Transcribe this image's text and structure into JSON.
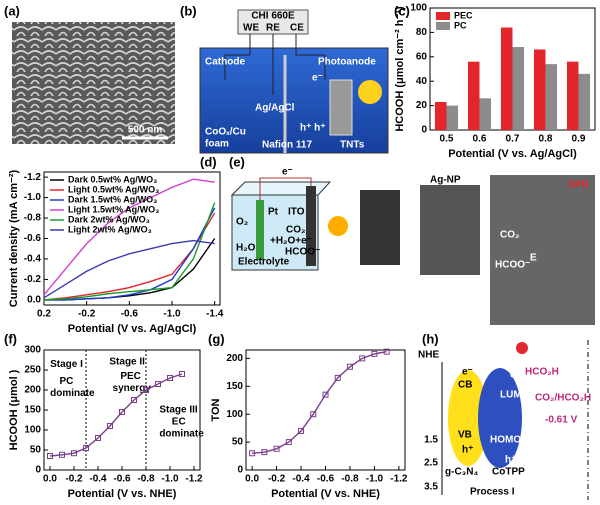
{
  "panel_labels": [
    "(a)",
    "(b)",
    "(c)",
    "(d)",
    "(e)",
    "(f)",
    "(g)",
    "(h)"
  ],
  "panel_a": {
    "scale_bar": "500 nm"
  },
  "panel_b": {
    "instrument": "CHI 660E",
    "we": "WE",
    "re": "RE",
    "ce": "CE",
    "cathode": "Cathode",
    "photoanode": "Photoanode",
    "reference": "Ag/AgCl",
    "cathode_material": "CoOₓ/Cu",
    "cathode_material2": "foam",
    "membrane": "Nafion 117",
    "anode_material": "TNTs",
    "electron": "e⁻",
    "hole": "h⁺ h⁺"
  },
  "panel_e": {
    "electron": "e⁻",
    "pt": "Pt",
    "ito": "ITO",
    "o2": "O₂",
    "h2o": "H₂O",
    "reactants": "CO₂",
    "reactants2": "+H₂O+e⁻",
    "product": "HCOO⁻",
    "electrolyte": "Electrolyte",
    "nanoparticle": "Ag-NP",
    "spr": "SPR",
    "co2": "CO₂",
    "hcoo": "HCOO⁻",
    "e_field": "E"
  },
  "panel_h": {
    "axis_title": "NHE",
    "ticks": [
      "1.5",
      "2.5",
      "3.5"
    ],
    "cb": "CB",
    "vb": "VB",
    "e1": "e⁻",
    "h1": "h⁺",
    "e2": "e⁻",
    "h2": "h⁺",
    "lumo": "LUMO",
    "homo": "HOMO",
    "material1": "g-C₃N₄",
    "material2": "CoTPP",
    "product": "HCO₂H",
    "couple": "CO₂/HCO₂H",
    "potential": "-0.61 V",
    "process": "Process I"
  },
  "chart_data": [
    {
      "type": "bar",
      "categories": [
        "0.5",
        "0.6",
        "0.7",
        "0.8",
        "0.9"
      ],
      "series": [
        {
          "name": "PEC",
          "color": "#e3262c",
          "values": [
            23,
            56,
            84,
            66,
            56
          ]
        },
        {
          "name": "PC",
          "color": "#8c8c8c",
          "values": [
            20,
            26,
            68,
            54,
            46
          ]
        }
      ],
      "ylim": [
        0,
        100
      ],
      "yticks": [
        0,
        20,
        40,
        60,
        80,
        100
      ],
      "ylabel": "HCOOH (μmol cm⁻² h⁻¹)",
      "xlabel": "Potential (V vs. Ag/AgCl)",
      "legend": "upper left"
    },
    {
      "type": "line",
      "x": [
        0.2,
        0,
        -0.2,
        -0.4,
        -0.6,
        -0.8,
        -1.0,
        -1.2,
        -1.4
      ],
      "series": [
        {
          "name": "Dark 0.5wt% Ag/WO₃",
          "color": "#000000",
          "values": [
            0,
            0,
            -0.01,
            -0.02,
            -0.04,
            -0.07,
            -0.12,
            -0.3,
            -0.6
          ]
        },
        {
          "name": "Light 0.5wt% Ag/WO₃",
          "color": "#e3262c",
          "values": [
            0,
            -0.02,
            -0.05,
            -0.08,
            -0.12,
            -0.18,
            -0.25,
            -0.5,
            -0.85
          ]
        },
        {
          "name": "Dark 1.5wt% Ag/WO₃",
          "color": "#1f3fd1",
          "values": [
            0,
            0,
            -0.01,
            -0.02,
            -0.05,
            -0.1,
            -0.2,
            -0.5,
            -0.9
          ]
        },
        {
          "name": "Light 1.5wt% Ag/WO₃",
          "color": "#d13fd1",
          "values": [
            -0.05,
            -0.3,
            -0.55,
            -0.75,
            -0.9,
            -1.0,
            -1.1,
            -1.18,
            -1.15
          ]
        },
        {
          "name": "Dark 2wt% Ag/WO₃",
          "color": "#1a9a2a",
          "values": [
            0,
            -0.01,
            -0.03,
            -0.06,
            -0.08,
            -0.1,
            -0.12,
            -0.4,
            -0.95
          ]
        },
        {
          "name": "Light 2wt% Ag/WO₃",
          "color": "#3b3bb0",
          "values": [
            -0.02,
            -0.15,
            -0.28,
            -0.38,
            -0.45,
            -0.5,
            -0.55,
            -0.58,
            -0.55
          ]
        }
      ],
      "xlim": [
        0.2,
        -1.45
      ],
      "xticks": [
        0.2,
        -0.2,
        -0.6,
        {
          "value": -1,
          "label": "-1.0"
        },
        -1.4
      ],
      "ylim": [
        0.05,
        -1.25
      ],
      "yticks": [
        {
          "value": 0,
          "label": "0.0"
        },
        -0.2,
        -0.4,
        -0.6,
        -0.8,
        {
          "value": -1,
          "label": "-1.0"
        },
        -1.2
      ],
      "ylabel": "Current density (mA cm⁻²)",
      "xlabel": "Potential (V vs. Ag/AgCl)",
      "legend": "upper left"
    },
    {
      "type": "line",
      "x": [
        0,
        -0.1,
        -0.2,
        -0.3,
        -0.4,
        -0.5,
        -0.6,
        -0.7,
        -0.8,
        -0.9,
        -1.0,
        -1.1
      ],
      "series": [
        {
          "color": "#7b3f8a",
          "values": [
            35,
            38,
            42,
            55,
            80,
            110,
            145,
            175,
            200,
            215,
            230,
            240
          ]
        }
      ],
      "marker": "square",
      "xlim": [
        0.05,
        -1.25
      ],
      "xticks": [
        {
          "value": 0,
          "label": "0.0"
        },
        -0.2,
        -0.4,
        -0.6,
        -0.8,
        {
          "value": -1,
          "label": "-1.0"
        },
        -1.2
      ],
      "ylim": [
        0,
        300
      ],
      "yticks": [
        0,
        50,
        100,
        150,
        200,
        250,
        300
      ],
      "dividers": [
        -0.3,
        -0.8
      ],
      "annotations": [
        "Stage I",
        "PC",
        "dominate",
        "Stage II",
        "PEC",
        "synergy",
        "Stage III",
        "EC",
        "dominate"
      ],
      "ylabel": "HCOOH (μmol )",
      "xlabel": "Potential (V vs. NHE)"
    },
    {
      "type": "line",
      "x": [
        0,
        -0.1,
        -0.2,
        -0.3,
        -0.4,
        -0.5,
        -0.6,
        -0.7,
        -0.8,
        -0.9,
        -1.0,
        -1.1
      ],
      "series": [
        {
          "color": "#7b3f8a",
          "values": [
            30,
            32,
            38,
            50,
            70,
            100,
            135,
            165,
            185,
            200,
            208,
            212
          ]
        }
      ],
      "marker": "square",
      "xlim": [
        0.05,
        -1.25
      ],
      "xticks": [
        {
          "value": 0,
          "label": "0.0"
        },
        -0.2,
        -0.4,
        -0.6,
        -0.8,
        {
          "value": -1,
          "label": "-1.0"
        },
        -1.2
      ],
      "ylim": [
        0,
        215
      ],
      "yticks": [
        0,
        50,
        100,
        150,
        200
      ],
      "ylabel": "TON",
      "xlabel": "Potential (V vs. NHE)"
    }
  ]
}
